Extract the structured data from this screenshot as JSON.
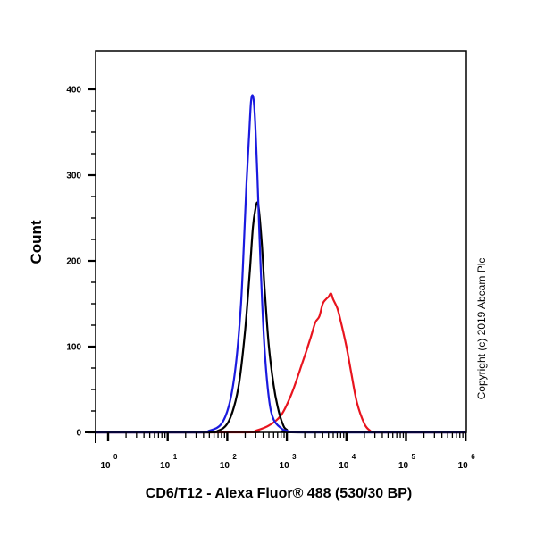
{
  "chart_data": {
    "type": "line",
    "title": "",
    "xlabel": "CD6/T12 - Alexa Fluor® 488 (530/30 BP)",
    "ylabel": "Count",
    "xscale": "log",
    "xlim": [
      0.8,
      1000000
    ],
    "ylim": [
      0,
      400
    ],
    "x_ticks": [
      {
        "base": "10",
        "exp": "0",
        "value": 1
      },
      {
        "base": "10",
        "exp": "1",
        "value": 10
      },
      {
        "base": "10",
        "exp": "2",
        "value": 100
      },
      {
        "base": "10",
        "exp": "3",
        "value": 1000
      },
      {
        "base": "10",
        "exp": "4",
        "value": 10000
      },
      {
        "base": "10",
        "exp": "5",
        "value": 100000
      },
      {
        "base": "10",
        "exp": "6",
        "value": 1000000
      }
    ],
    "y_ticks": [
      "0",
      "100",
      "200",
      "300",
      "400"
    ],
    "y_tick_values": [
      0,
      100,
      200,
      300,
      400
    ],
    "grid": false,
    "legend": null,
    "annotation": "Copyright (c) 2019 Abcam Plc",
    "series": [
      {
        "name": "blue",
        "color": "#1a1adf",
        "x": [
          1,
          30,
          50,
          80,
          110,
          140,
          170,
          190,
          210,
          230,
          250,
          270,
          290,
          320,
          360,
          420,
          500,
          600,
          800,
          1000,
          2000,
          1000000
        ],
        "y": [
          0,
          0,
          2,
          10,
          35,
          80,
          150,
          220,
          290,
          340,
          385,
          392,
          370,
          300,
          200,
          100,
          40,
          15,
          5,
          2,
          0,
          0
        ]
      },
      {
        "name": "black",
        "color": "#000000",
        "x": [
          1,
          40,
          70,
          100,
          130,
          160,
          200,
          240,
          270,
          300,
          320,
          340,
          380,
          430,
          500,
          600,
          700,
          850,
          1000,
          1500,
          1000000
        ],
        "y": [
          0,
          0,
          2,
          10,
          30,
          60,
          120,
          190,
          240,
          262,
          268,
          260,
          220,
          160,
          100,
          55,
          30,
          10,
          3,
          0,
          0
        ]
      },
      {
        "name": "red",
        "color": "#e8141e",
        "x": [
          1,
          200,
          300,
          500,
          800,
          1200,
          1800,
          2500,
          3000,
          3500,
          4000,
          4500,
          5000,
          5500,
          6000,
          7000,
          8000,
          10000,
          12000,
          15000,
          20000,
          25000,
          30000,
          1000000
        ],
        "y": [
          0,
          0,
          2,
          8,
          20,
          45,
          80,
          110,
          128,
          135,
          150,
          155,
          158,
          162,
          155,
          145,
          130,
          100,
          70,
          35,
          10,
          2,
          0,
          0
        ]
      }
    ]
  }
}
